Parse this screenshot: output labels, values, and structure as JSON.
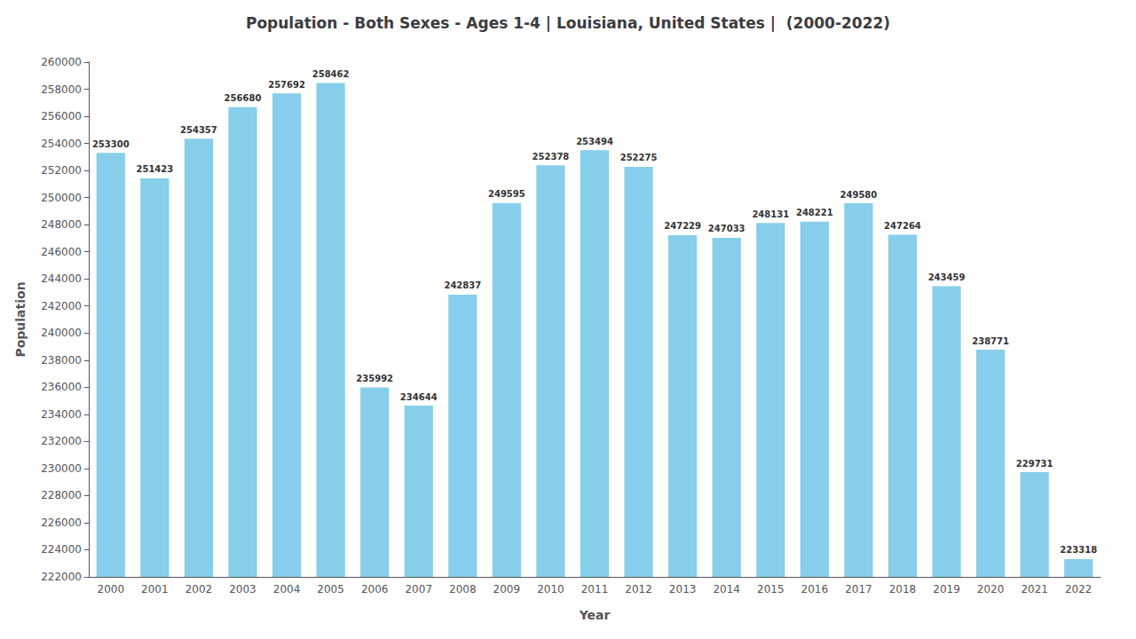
{
  "chart_data": {
    "type": "bar",
    "title": "Population - Both Sexes - Ages 1-4 | Louisiana, United States |  (2000-2022)",
    "xlabel": "Year",
    "ylabel": "Population",
    "categories": [
      "2000",
      "2001",
      "2002",
      "2003",
      "2004",
      "2005",
      "2006",
      "2007",
      "2008",
      "2009",
      "2010",
      "2011",
      "2012",
      "2013",
      "2014",
      "2015",
      "2016",
      "2017",
      "2018",
      "2019",
      "2020",
      "2021",
      "2022"
    ],
    "values": [
      253300,
      251423,
      254357,
      256680,
      257692,
      258462,
      235992,
      234644,
      242837,
      249595,
      252378,
      253494,
      252275,
      247229,
      247033,
      248131,
      248221,
      249580,
      247264,
      243459,
      238771,
      229731,
      223318
    ],
    "color": "#87CEEB",
    "ylim": [
      222000,
      260000
    ],
    "yticks": [
      222000,
      224000,
      226000,
      228000,
      230000,
      232000,
      234000,
      236000,
      238000,
      240000,
      242000,
      244000,
      246000,
      248000,
      250000,
      252000,
      254000,
      256000,
      258000,
      260000
    ],
    "grid": false,
    "data_labels": true
  }
}
